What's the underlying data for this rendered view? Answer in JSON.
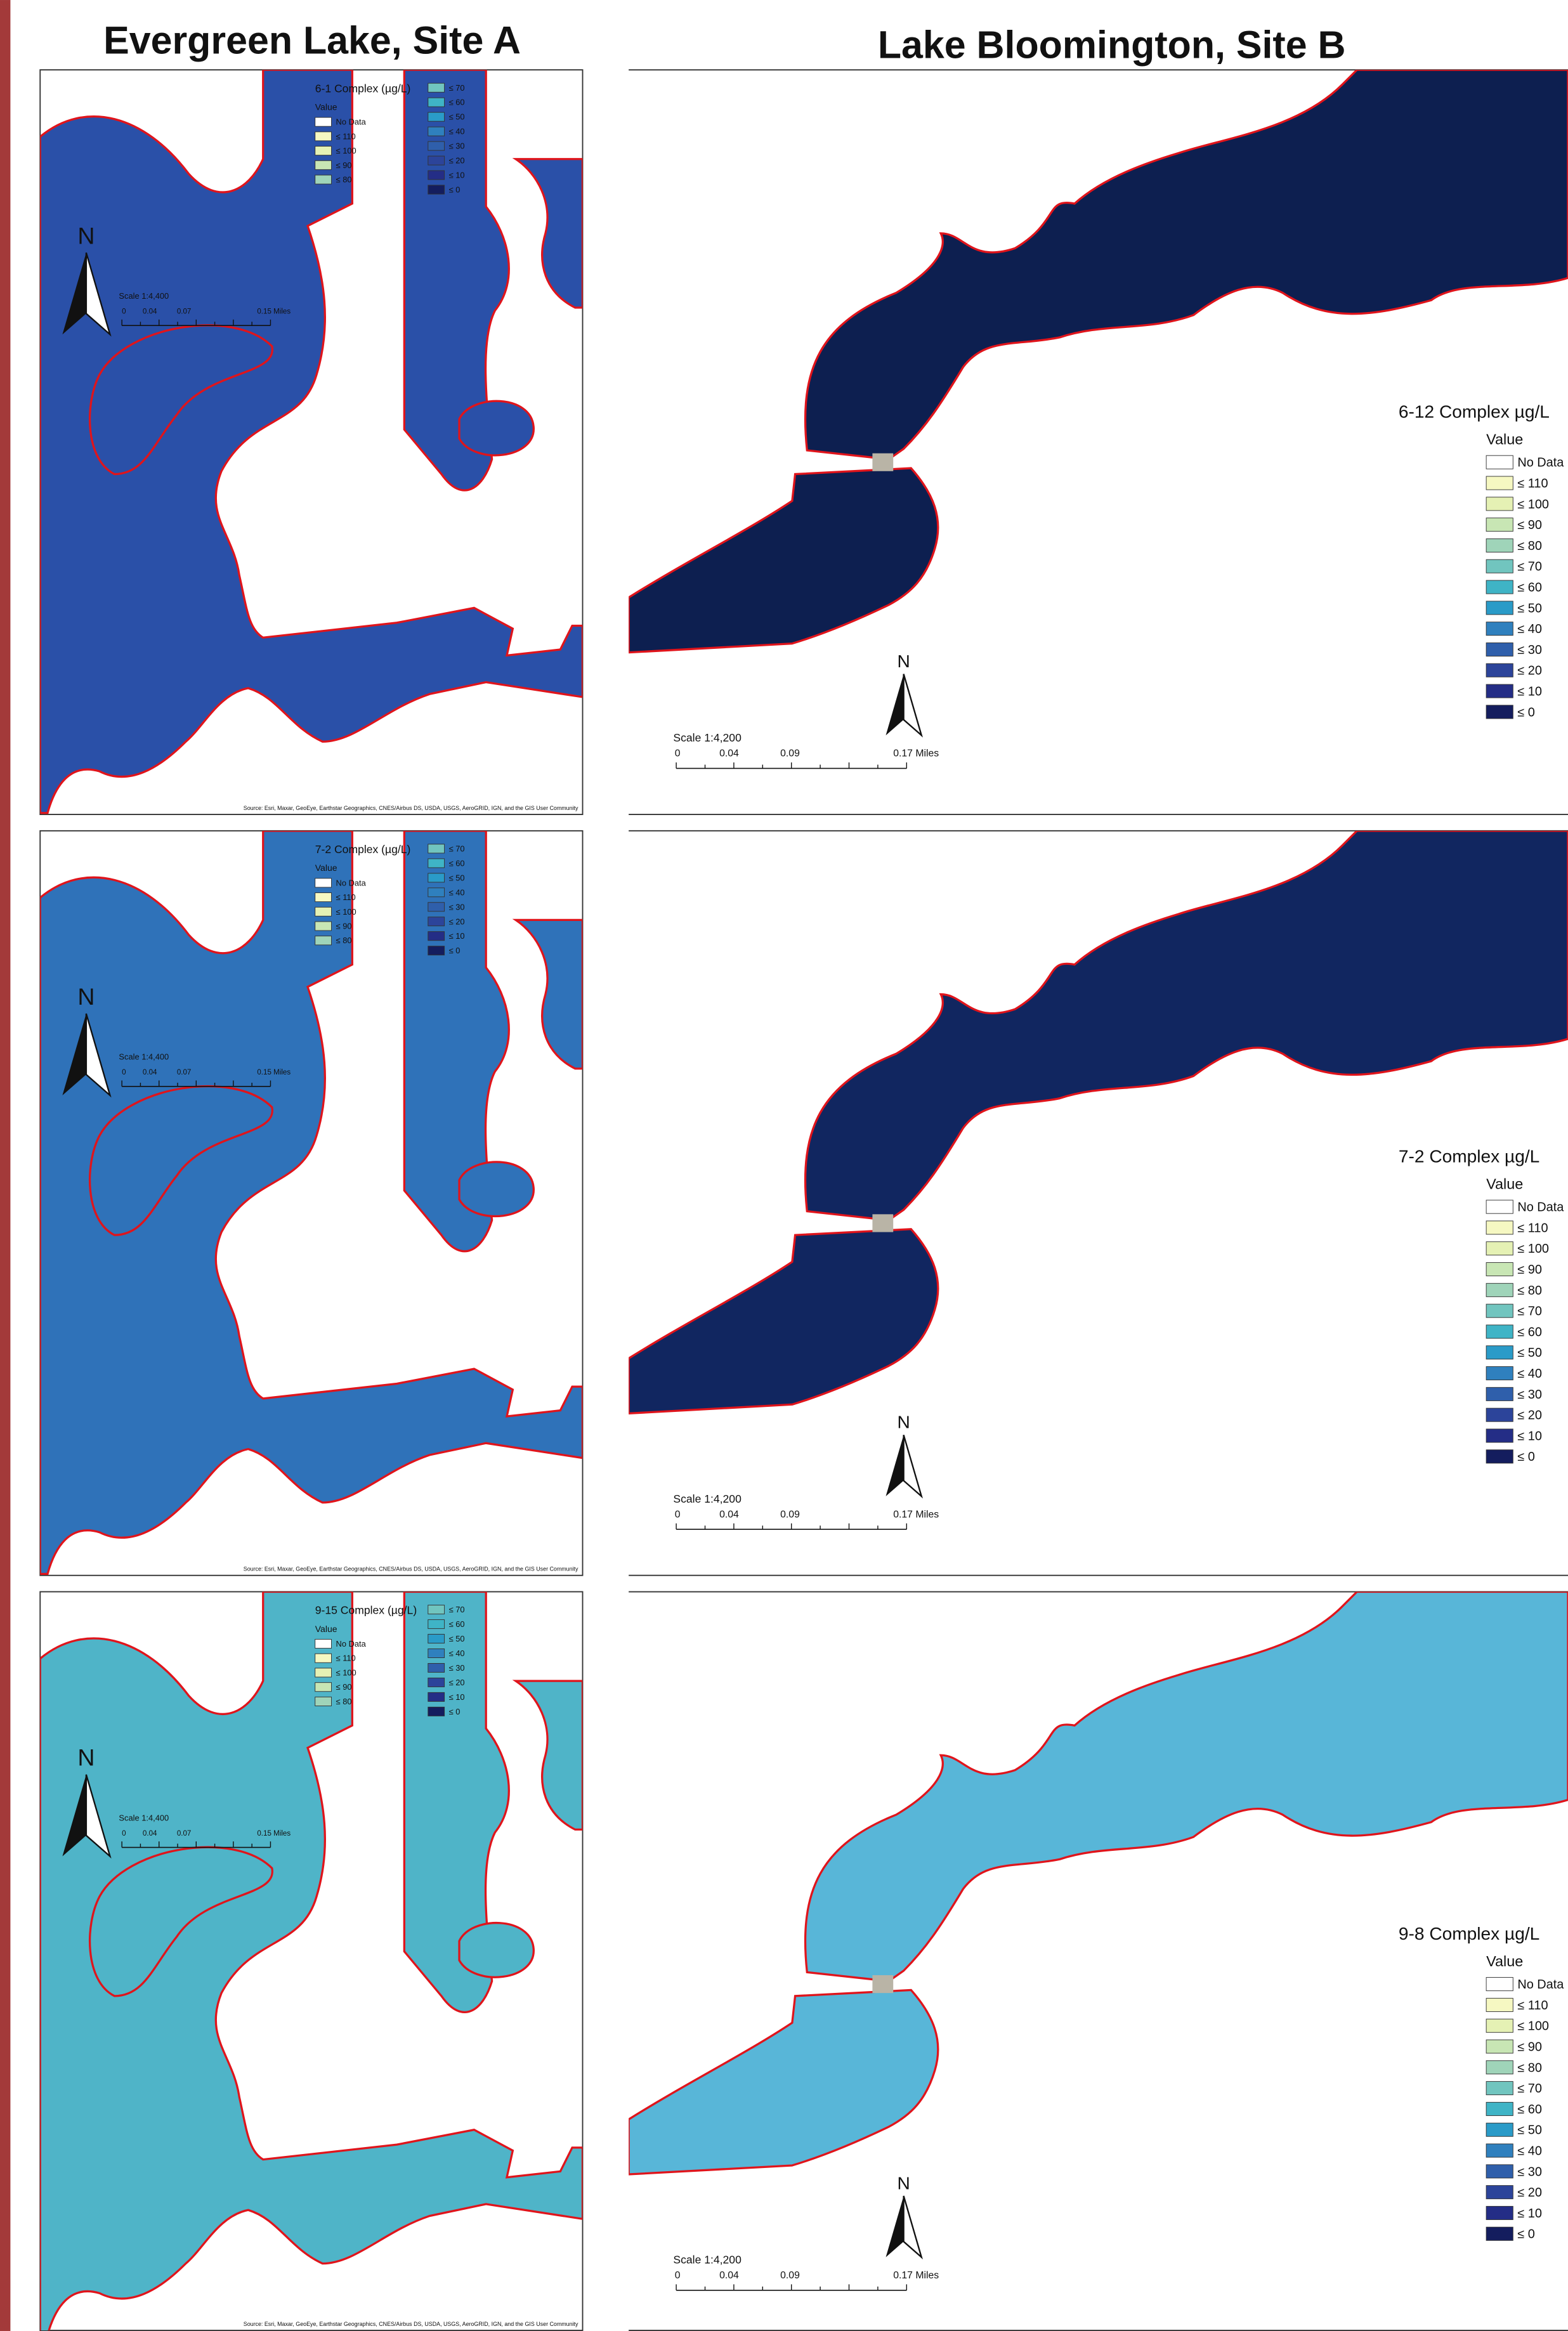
{
  "titles": [
    "Evergreen Lake, Site A",
    "Lake Bloomington, Site B"
  ],
  "legend": {
    "value_heading": "Value",
    "classes": [
      {
        "label": "No Data",
        "color": "#ffffff"
      },
      {
        "label": "≤ 110",
        "color": "#f6f8c2"
      },
      {
        "label": "≤ 100",
        "color": "#e5f1b4"
      },
      {
        "label": "≤ 90",
        "color": "#c8e6b4"
      },
      {
        "label": "≤ 80",
        "color": "#9fd4b9"
      },
      {
        "label": "≤ 70",
        "color": "#71c5bf"
      },
      {
        "label": "≤ 60",
        "color": "#3fb4c6"
      },
      {
        "label": "≤ 50",
        "color": "#2a9bc8"
      },
      {
        "label": "≤ 40",
        "color": "#2f80be"
      },
      {
        "label": "≤ 30",
        "color": "#2f5fab"
      },
      {
        "label": "≤ 20",
        "color": "#2c449a"
      },
      {
        "label": "≤ 10",
        "color": "#242d86"
      },
      {
        "label": "≤ 0",
        "color": "#141d5e"
      }
    ]
  },
  "site_a": {
    "north": "N",
    "scale": "Scale 1:4,400",
    "scale_labels": [
      "0",
      "0.04",
      "0.07",
      "0.15 Miles"
    ],
    "source": "Source: Esri, Maxar, GeoEye, Earthstar Geographics, CNES/Airbus DS, USDA, USGS, AeroGRID, IGN, and the GIS User Community",
    "maps": [
      {
        "legend_title": "6-1 Complex (µg/L)",
        "water_color": "#2a50a8"
      },
      {
        "legend_title": "7-2 Complex (µg/L)",
        "water_color": "#2f72b9"
      },
      {
        "legend_title": "9-15 Complex (µg/L)",
        "water_color": "#4fb4c8"
      }
    ]
  },
  "site_b": {
    "north": "N",
    "scale": "Scale 1:4,200",
    "scale_labels": [
      "0",
      "0.04",
      "0.09",
      "0.17 Miles"
    ],
    "maps": [
      {
        "legend_title": "6-12 Complex µg/L",
        "water_color": "#0d1f50"
      },
      {
        "legend_title": "7-2 Complex µg/L",
        "water_color": "#112660"
      },
      {
        "legend_title": "9-8 Complex µg/L",
        "water_color": "#58b6d8"
      }
    ]
  }
}
